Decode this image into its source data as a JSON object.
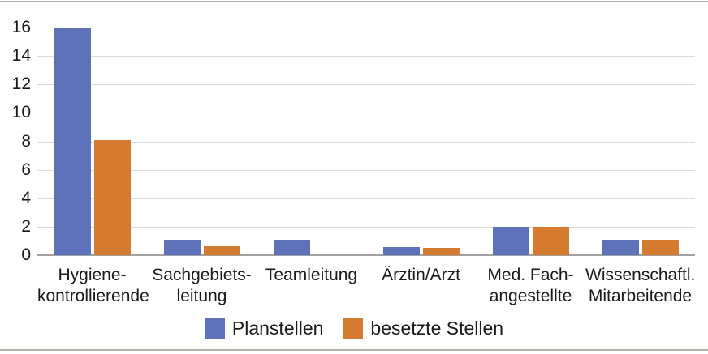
{
  "figure": {
    "background": "#ffffff",
    "rule_color": "#b1b1a9"
  },
  "chart_data": {
    "type": "bar",
    "title": "",
    "categories": [
      "Hygiene-kontrollierende",
      "Sachgebietsleitung",
      "Teamleitung",
      "Ärztin/Arzt",
      "Med. Fachangestellte",
      "Wissenschaftl. Mitarbeitende"
    ],
    "category_label_lines": [
      [
        "Hygiene-",
        "kontrollierende"
      ],
      [
        "Sachgebiets-",
        "leitung"
      ],
      [
        "Teamleitung"
      ],
      [
        "Ärztin/Arzt"
      ],
      [
        "Med. Fach-",
        "angestellte"
      ],
      [
        "Wissenschaftl.",
        "Mitarbeitende"
      ]
    ],
    "series": [
      {
        "name": "Planstellen",
        "color": "#5e72b9",
        "values": [
          16,
          1.1,
          1.1,
          0.55,
          2,
          1.1
        ]
      },
      {
        "name": "besetzte Stellen",
        "color": "#d47b30",
        "values": [
          8.1,
          0.6,
          0,
          0.5,
          2,
          1.1
        ]
      }
    ],
    "ylim": [
      0,
      16
    ],
    "yticks": [
      0,
      2,
      4,
      6,
      8,
      10,
      12,
      14,
      16
    ],
    "grid": "horizontal",
    "legend_position": "bottom",
    "gridline_color": "#dcdcdc",
    "axis_line_color": "#a2a2a2",
    "text_color": "#1a1a1a"
  }
}
